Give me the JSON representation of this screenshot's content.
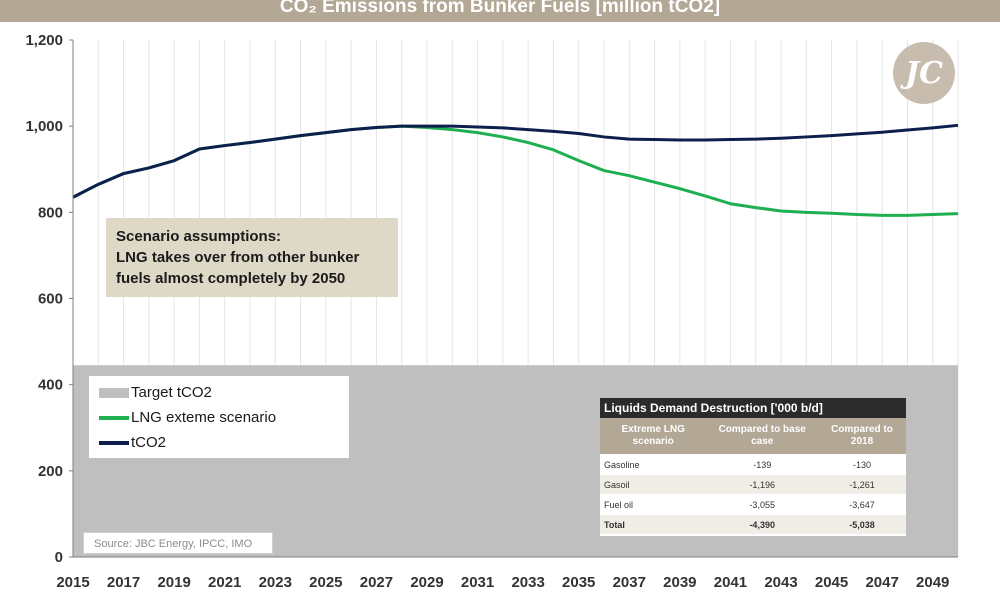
{
  "chart_data": {
    "type": "line",
    "title": "CO₂ Emissions from Bunker Fuels [million tCO2]",
    "xlabel": "",
    "ylabel": "",
    "x": [
      2015,
      2016,
      2017,
      2018,
      2019,
      2020,
      2021,
      2022,
      2023,
      2024,
      2025,
      2026,
      2027,
      2028,
      2029,
      2030,
      2031,
      2032,
      2033,
      2034,
      2035,
      2036,
      2037,
      2038,
      2039,
      2040,
      2041,
      2042,
      2043,
      2044,
      2045,
      2046,
      2047,
      2048,
      2049,
      2050
    ],
    "x_tick_labels": [
      "2015",
      "2017",
      "2019",
      "2021",
      "2023",
      "2025",
      "2027",
      "2029",
      "2031",
      "2033",
      "2035",
      "2037",
      "2039",
      "2041",
      "2043",
      "2045",
      "2047",
      "2049"
    ],
    "xlim": [
      2015,
      2050
    ],
    "ylim": [
      0,
      1200
    ],
    "y_ticks": [
      0,
      200,
      400,
      600,
      800,
      1000,
      1200
    ],
    "y_tick_labels": [
      "0",
      "200",
      "400",
      "600",
      "800",
      "1,000",
      "1,200"
    ],
    "grid": "vertical",
    "series": [
      {
        "name": "Target tCO2",
        "type": "area",
        "color": "#bfbfbf",
        "values": [
          445,
          445,
          445,
          445,
          445,
          445,
          445,
          445,
          445,
          445,
          445,
          445,
          445,
          445,
          445,
          445,
          445,
          445,
          445,
          445,
          445,
          445,
          445,
          445,
          445,
          445,
          445,
          445,
          445,
          445,
          445,
          445,
          445,
          445,
          445,
          445
        ]
      },
      {
        "name": "LNG exteme scenario",
        "type": "line",
        "color": "#1eb050",
        "values": [
          835,
          865,
          890,
          903,
          920,
          947,
          955,
          962,
          970,
          978,
          985,
          992,
          997,
          1000,
          997,
          992,
          985,
          975,
          962,
          945,
          920,
          897,
          885,
          870,
          855,
          838,
          820,
          811,
          803,
          800,
          798,
          795,
          793,
          793,
          795,
          797
        ]
      },
      {
        "name": "tCO2",
        "type": "line",
        "color": "#0d1f4c",
        "values": [
          835,
          865,
          890,
          903,
          920,
          947,
          955,
          962,
          970,
          978,
          985,
          992,
          997,
          1000,
          1000,
          1000,
          998,
          996,
          992,
          988,
          983,
          975,
          970,
          969,
          968,
          968,
          969,
          970,
          972,
          975,
          978,
          982,
          986,
          991,
          996,
          1002
        ]
      }
    ],
    "legend_position": "bottom-left"
  },
  "annotation": {
    "lines": [
      "Scenario assumptions:",
      "LNG takes over from other bunker",
      "fuels almost completely by 2050"
    ]
  },
  "source": "Source: JBC Energy, IPCC, IMO",
  "logo": {
    "icon": "jbc-logo",
    "text": "JC"
  },
  "table": {
    "title": "Liquids Demand Destruction ['000 b/d]",
    "headers": [
      "Extreme LNG scenario",
      "Compared to base case",
      "Compared to 2018"
    ],
    "rows": [
      {
        "label": "Gasoline",
        "base": "-139",
        "y2018": "-130"
      },
      {
        "label": "Gasoil",
        "base": "-1,196",
        "y2018": "-1,261"
      },
      {
        "label": "Fuel oil",
        "base": "-3,055",
        "y2018": "-3,647"
      },
      {
        "label": "Total",
        "base": "-4,390",
        "y2018": "-5,038"
      }
    ]
  }
}
